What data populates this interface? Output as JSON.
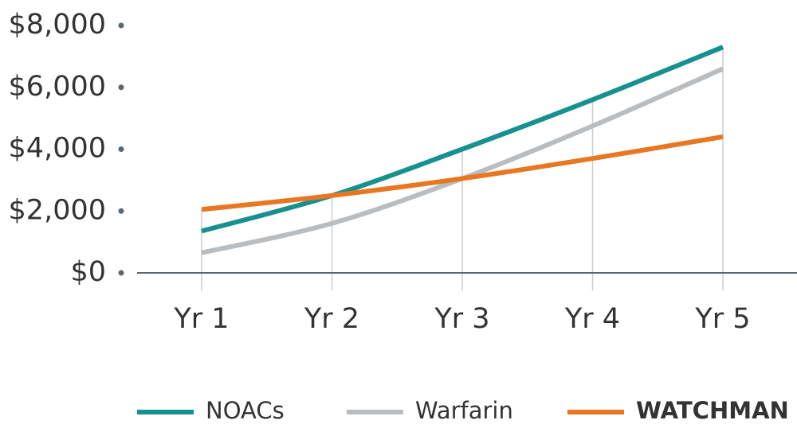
{
  "chart_data": {
    "type": "line",
    "categories": [
      "Yr 1",
      "Yr 2",
      "Yr 3",
      "Yr 4",
      "Yr 5"
    ],
    "series": [
      {
        "name": "NOACs",
        "color": "#17918f",
        "values": [
          1350,
          2500,
          4000,
          5600,
          7300
        ]
      },
      {
        "name": "Warfarin",
        "color": "#b9bdc0",
        "values": [
          650,
          1600,
          3050,
          4750,
          6600
        ]
      },
      {
        "name": "WATCHMAN",
        "color": "#e87722",
        "values": [
          2050,
          2500,
          3050,
          3700,
          4400
        ]
      }
    ],
    "ylim": [
      0,
      8000
    ],
    "yticks": [
      {
        "value": 0,
        "label": "$0"
      },
      {
        "value": 2000,
        "label": "$2,000"
      },
      {
        "value": 4000,
        "label": "$4,000"
      },
      {
        "value": 6000,
        "label": "$6,000"
      },
      {
        "value": 8000,
        "label": "$8,000"
      }
    ],
    "legend": "bottom"
  }
}
